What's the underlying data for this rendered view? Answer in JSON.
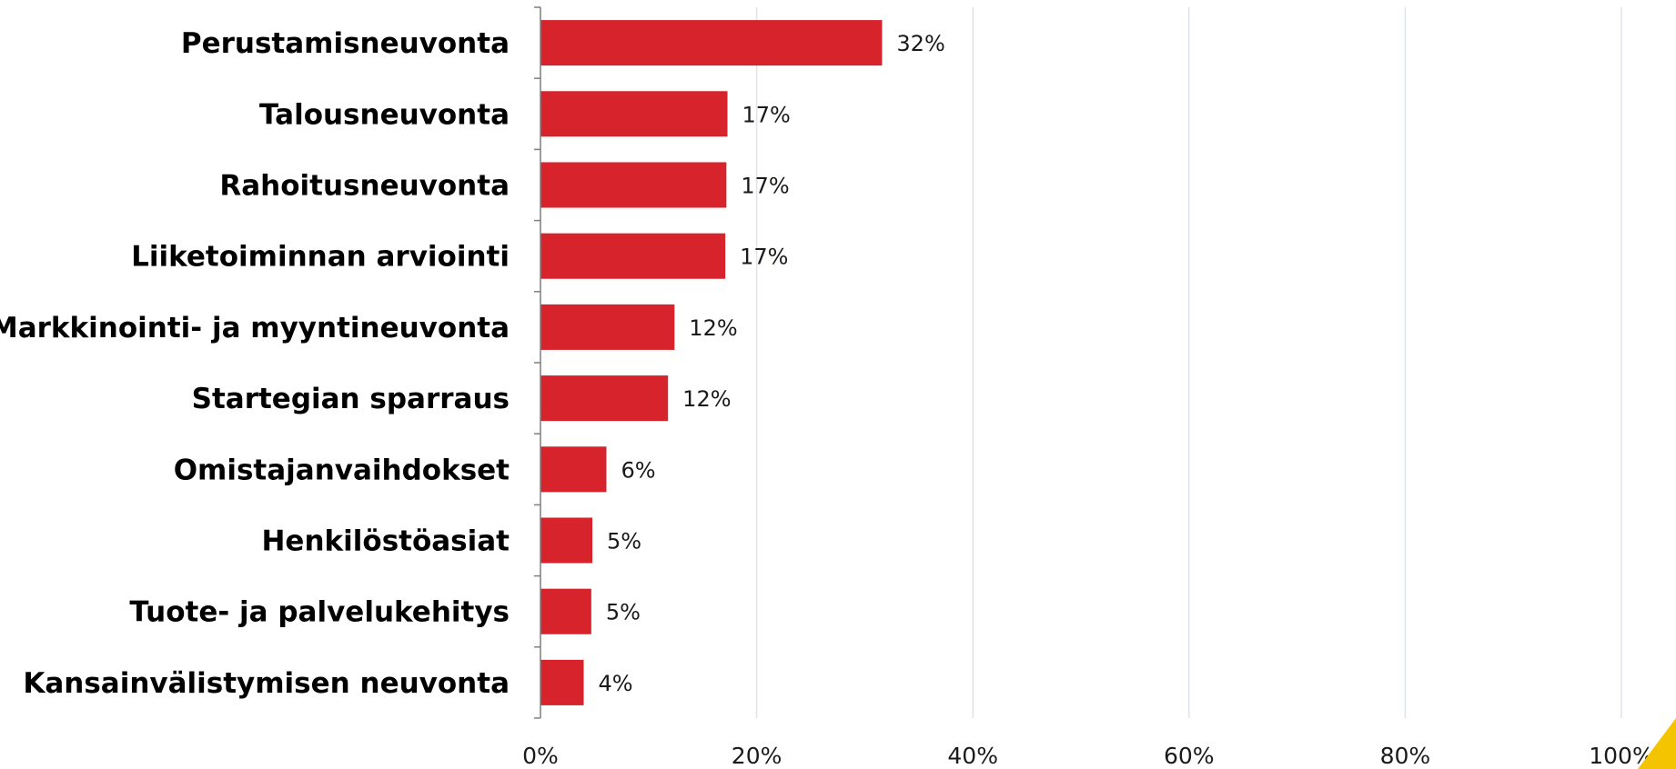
{
  "colors": {
    "bar": "#d6232c",
    "corner_accent": "#f5c400"
  },
  "chart_data": {
    "type": "bar",
    "orientation": "horizontal",
    "title": "",
    "xlabel": "",
    "ylabel": "",
    "categories": [
      "Perustamisneuvonta",
      "Talousneuvonta",
      "Rahoitusneuvonta",
      "Liiketoiminnan arviointi",
      "Markkinointi- ja myyntineuvonta",
      "Startegian sparraus",
      "Omistajanvaihdokset",
      "Henkilöstöasiat",
      "Tuote- ja palvelukehitys",
      "Kansainvälistymisen neuvonta"
    ],
    "values": [
      31.6,
      17.3,
      17.2,
      17.1,
      12.4,
      11.8,
      6.1,
      4.8,
      4.7,
      4.0
    ],
    "value_labels": [
      "32%",
      "17%",
      "17%",
      "17%",
      "12%",
      "12%",
      "6%",
      "5%",
      "5%",
      "4%"
    ],
    "xlim": [
      0,
      100
    ],
    "x_ticks": [
      0,
      20,
      40,
      60,
      80,
      100
    ],
    "x_tick_labels": [
      "0%",
      "20%",
      "40%",
      "60%",
      "80%",
      "100%"
    ],
    "grid": "vertical",
    "legend": "none"
  }
}
